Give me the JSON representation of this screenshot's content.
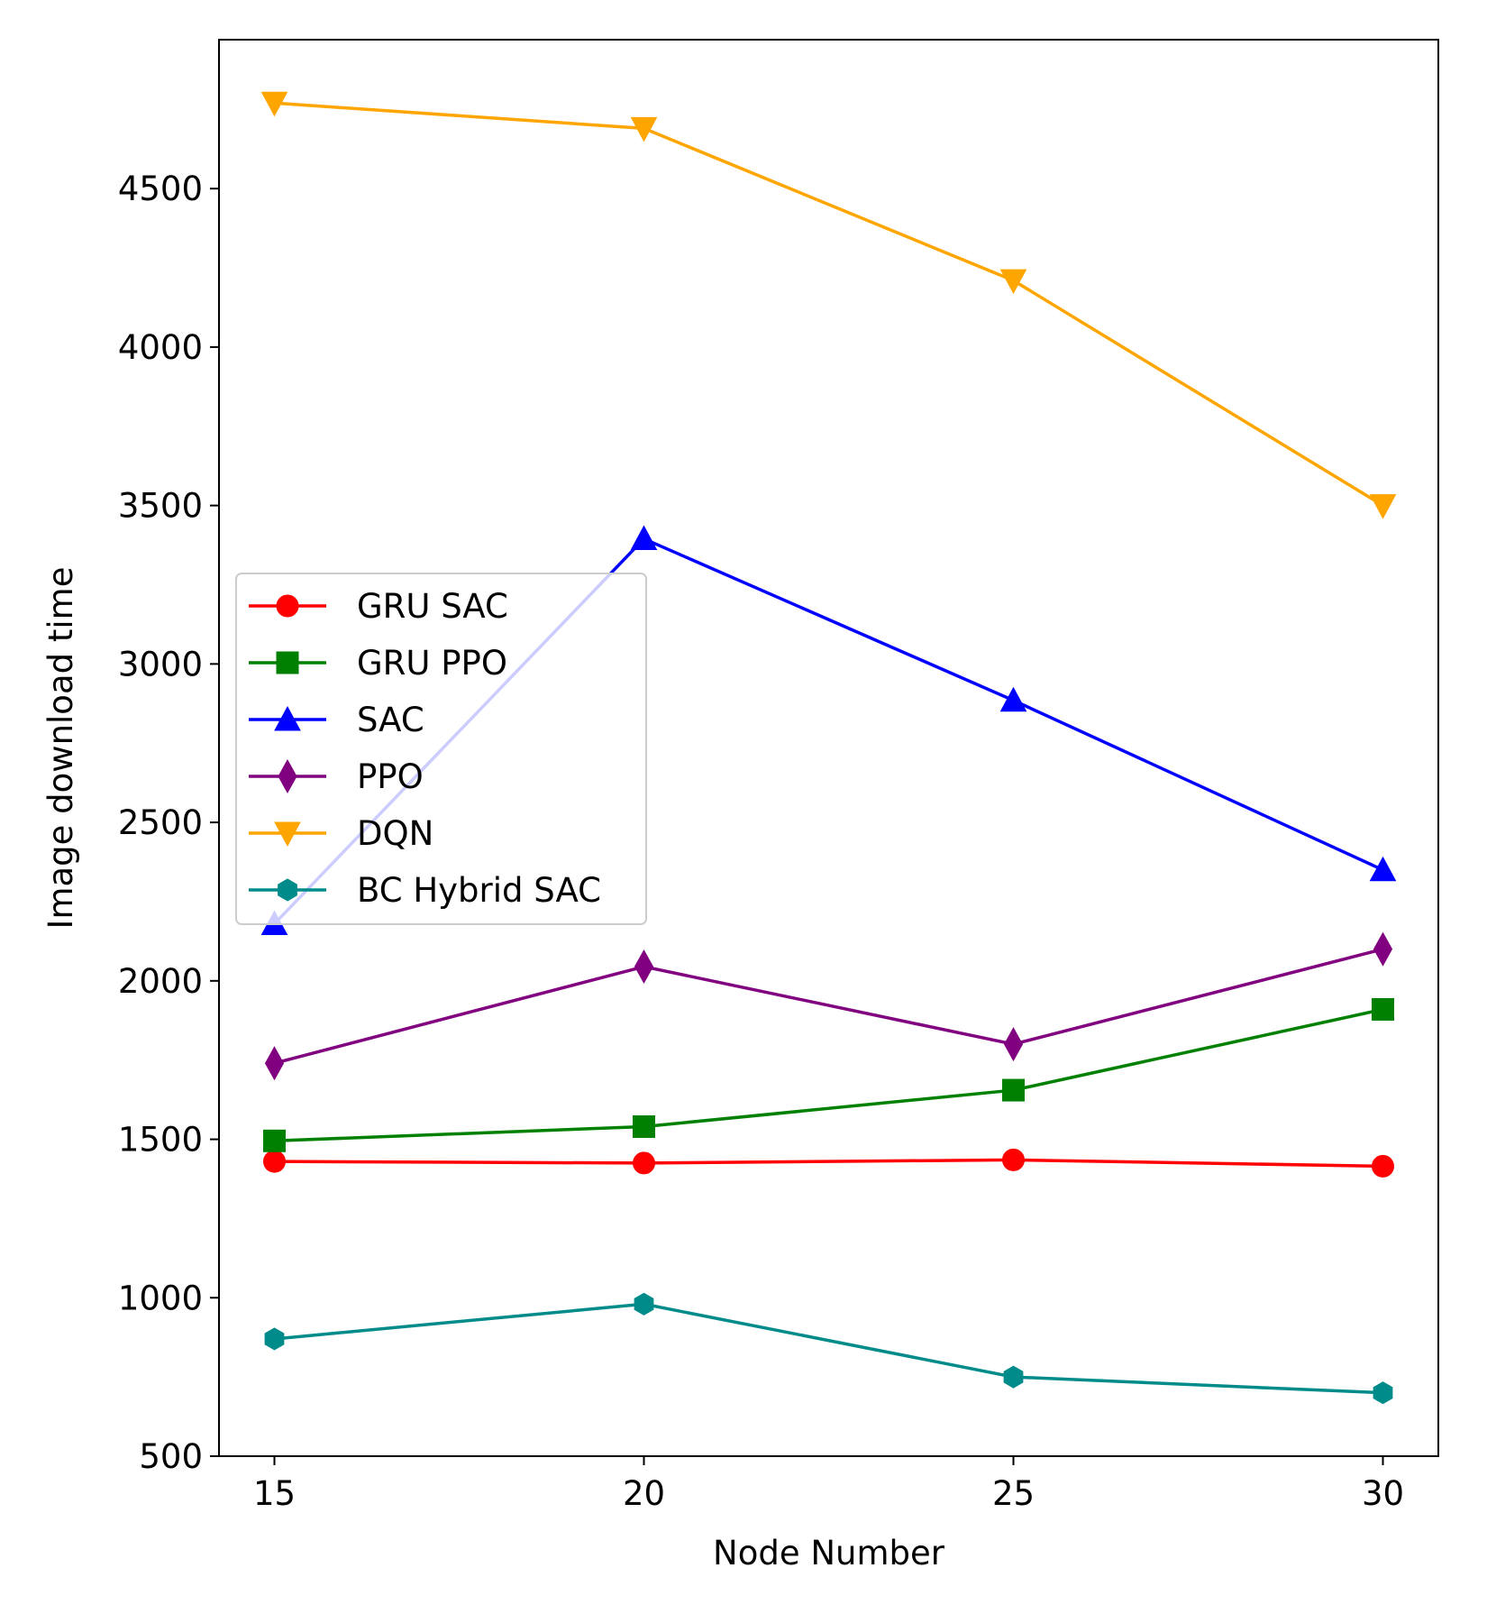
{
  "chart_data": {
    "type": "line",
    "title": "",
    "xlabel": "Node Number",
    "ylabel": "Image download time",
    "x": [
      15,
      20,
      25,
      30
    ],
    "xticks": [
      "15",
      "20",
      "25",
      "30"
    ],
    "yticks": [
      "500",
      "1000",
      "1500",
      "2000",
      "2500",
      "3000",
      "3500",
      "4000",
      "4500"
    ],
    "xlim": [
      14.25,
      30.75
    ],
    "ylim": [
      500,
      4970
    ],
    "grid": false,
    "legend_position": "center-left",
    "series": [
      {
        "name": "GRU SAC",
        "color": "#ff0000",
        "marker": "circle",
        "values": [
          1430,
          1425,
          1435,
          1415
        ]
      },
      {
        "name": "GRU PPO",
        "color": "#008000",
        "marker": "square",
        "values": [
          1495,
          1540,
          1655,
          1910
        ]
      },
      {
        "name": "SAC",
        "color": "#0000ff",
        "marker": "triangle-up",
        "values": [
          2180,
          3395,
          2885,
          2350
        ]
      },
      {
        "name": "PPO",
        "color": "#800080",
        "marker": "thin-diamond",
        "values": [
          1740,
          2045,
          1800,
          2100
        ]
      },
      {
        "name": "DQN",
        "color": "#ffa500",
        "marker": "triangle-down",
        "values": [
          4770,
          4690,
          4210,
          3500
        ]
      },
      {
        "name": "BC Hybrid SAC",
        "color": "#008b8b",
        "marker": "hexagon",
        "values": [
          870,
          980,
          750,
          700
        ]
      }
    ]
  }
}
